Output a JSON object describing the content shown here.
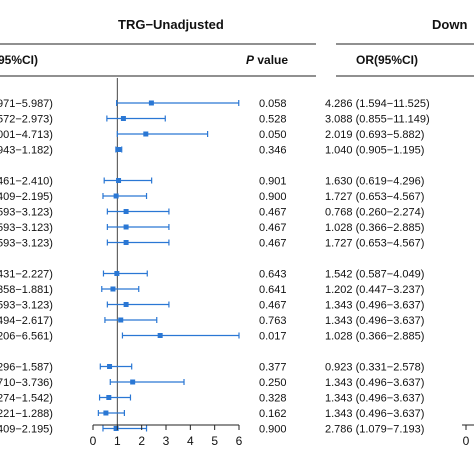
{
  "chart_data": {
    "type": "forest",
    "panel_titles": [
      "TRG−Unadjusted",
      "Down"
    ],
    "column_headers": {
      "ci_left": "95%CI)",
      "p_value_italic": "P",
      "p_value_rest": " value",
      "or_ci": "OR(95%CI)"
    },
    "x_ticks": [
      0,
      1,
      2,
      3,
      4,
      5,
      6
    ],
    "right_panel_tick": "0",
    "xlim": [
      0,
      6
    ],
    "reference_line": 1,
    "marker_color": "#2a77d4",
    "groups": [
      {
        "rows": [
          {
            "ci_text": "971−5.987)",
            "p": "0.058",
            "or_text": "4.286 (1.594−11.525)",
            "est": 2.4,
            "low": 0.97,
            "high": 5.99
          },
          {
            "ci_text": "572−2.973)",
            "p": "0.528",
            "or_text": "3.088 (0.855−11.149)",
            "est": 1.25,
            "low": 0.57,
            "high": 2.97
          },
          {
            "ci_text": "001−4.713)",
            "p": "0.050",
            "or_text": "2.019 (0.693−5.882)",
            "est": 2.17,
            "low": 1.0,
            "high": 4.71
          },
          {
            "ci_text": "943−1.182)",
            "p": "0.346",
            "or_text": "1.040 (0.905−1.195)",
            "est": 1.06,
            "low": 0.94,
            "high": 1.18
          }
        ]
      },
      {
        "rows": [
          {
            "ci_text": "461−2.410)",
            "p": "0.901",
            "or_text": "1.630 (0.619−4.296)",
            "est": 1.05,
            "low": 0.46,
            "high": 2.41
          },
          {
            "ci_text": "409−2.195)",
            "p": "0.900",
            "or_text": "1.727 (0.653−4.567)",
            "est": 0.95,
            "low": 0.41,
            "high": 2.2
          },
          {
            "ci_text": "593−3.123)",
            "p": "0.467",
            "or_text": "0.768 (0.260−2.274)",
            "est": 1.36,
            "low": 0.59,
            "high": 3.12
          },
          {
            "ci_text": "593−3.123)",
            "p": "0.467",
            "or_text": "1.028 (0.366−2.885)",
            "est": 1.36,
            "low": 0.59,
            "high": 3.12
          },
          {
            "ci_text": "593−3.123)",
            "p": "0.467",
            "or_text": "1.727 (0.653−4.567)",
            "est": 1.36,
            "low": 0.59,
            "high": 3.12
          }
        ]
      },
      {
        "rows": [
          {
            "ci_text": "431−2.227)",
            "p": "0.643",
            "or_text": "1.542 (0.587−4.049)",
            "est": 0.98,
            "low": 0.43,
            "high": 2.23
          },
          {
            "ci_text": "358−1.881)",
            "p": "0.641",
            "or_text": "1.202 (0.447−3.237)",
            "est": 0.82,
            "low": 0.36,
            "high": 1.88
          },
          {
            "ci_text": "593−3.123)",
            "p": "0.467",
            "or_text": "1.343 (0.496−3.637)",
            "est": 1.36,
            "low": 0.59,
            "high": 3.12
          },
          {
            "ci_text": "494−2.617)",
            "p": "0.763",
            "or_text": "1.343 (0.496−3.637)",
            "est": 1.14,
            "low": 0.49,
            "high": 2.62
          },
          {
            "ci_text": "206−6.561)",
            "p": "0.017",
            "or_text": "1.028 (0.366−2.885)",
            "est": 2.76,
            "low": 1.21,
            "high": 6.0
          }
        ]
      },
      {
        "rows": [
          {
            "ci_text": "296−1.587)",
            "p": "0.377",
            "or_text": "0.923 (0.331−2.578)",
            "est": 0.68,
            "low": 0.3,
            "high": 1.59
          },
          {
            "ci_text": "710−3.736)",
            "p": "0.250",
            "or_text": "1.343 (0.496−3.637)",
            "est": 1.63,
            "low": 0.71,
            "high": 3.74
          },
          {
            "ci_text": "274−1.542)",
            "p": "0.328",
            "or_text": "1.343 (0.496−3.637)",
            "est": 0.65,
            "low": 0.27,
            "high": 1.54
          },
          {
            "ci_text": "221−1.288)",
            "p": "0.162",
            "or_text": "1.343 (0.496−3.637)",
            "est": 0.53,
            "low": 0.22,
            "high": 1.29
          },
          {
            "ci_text": "409−2.195)",
            "p": "0.900",
            "or_text": "2.786 (1.079−7.193)",
            "est": 0.95,
            "low": 0.41,
            "high": 2.2
          }
        ]
      }
    ]
  }
}
